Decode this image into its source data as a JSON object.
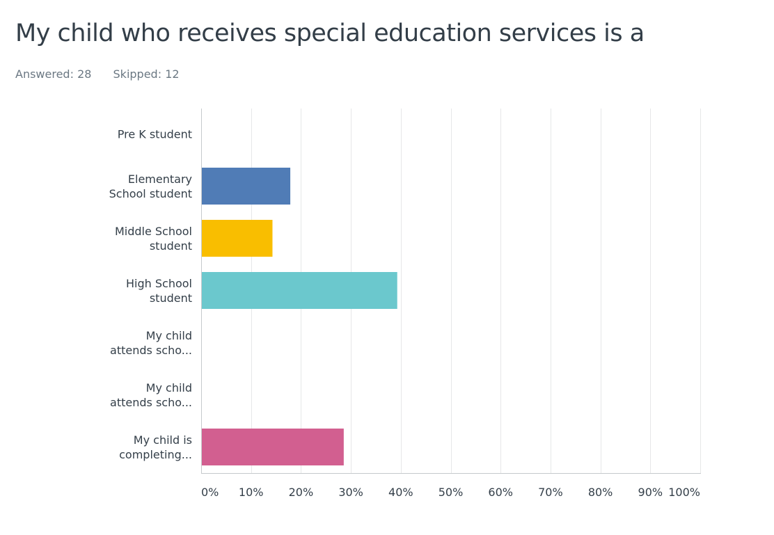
{
  "header": {
    "title": "My child who receives special education services is a"
  },
  "summary": {
    "answered_label": "Answered:",
    "answered": "28",
    "skipped_label": "Skipped:",
    "skipped": "12"
  },
  "chart_data": {
    "type": "bar",
    "orientation": "horizontal",
    "title": "",
    "xlabel": "",
    "ylabel": "",
    "xlim": [
      0,
      100
    ],
    "grid": true,
    "categories": [
      [
        "Pre K student"
      ],
      [
        "Elementary",
        "School student"
      ],
      [
        "Middle School",
        "student"
      ],
      [
        "High School",
        "student"
      ],
      [
        "My child",
        "attends scho..."
      ],
      [
        "My child",
        "attends scho..."
      ],
      [
        "My child is",
        "completing..."
      ]
    ],
    "values": [
      0,
      17.86,
      14.29,
      39.29,
      0,
      0,
      28.57
    ],
    "colors": [
      "#507cb6",
      "#507cb6",
      "#f9be00",
      "#6bc8cd",
      "#507cb6",
      "#507cb6",
      "#d25f90"
    ],
    "ticks": [
      "0%",
      "10%",
      "20%",
      "30%",
      "40%",
      "50%",
      "60%",
      "70%",
      "80%",
      "90%",
      "100%"
    ]
  }
}
